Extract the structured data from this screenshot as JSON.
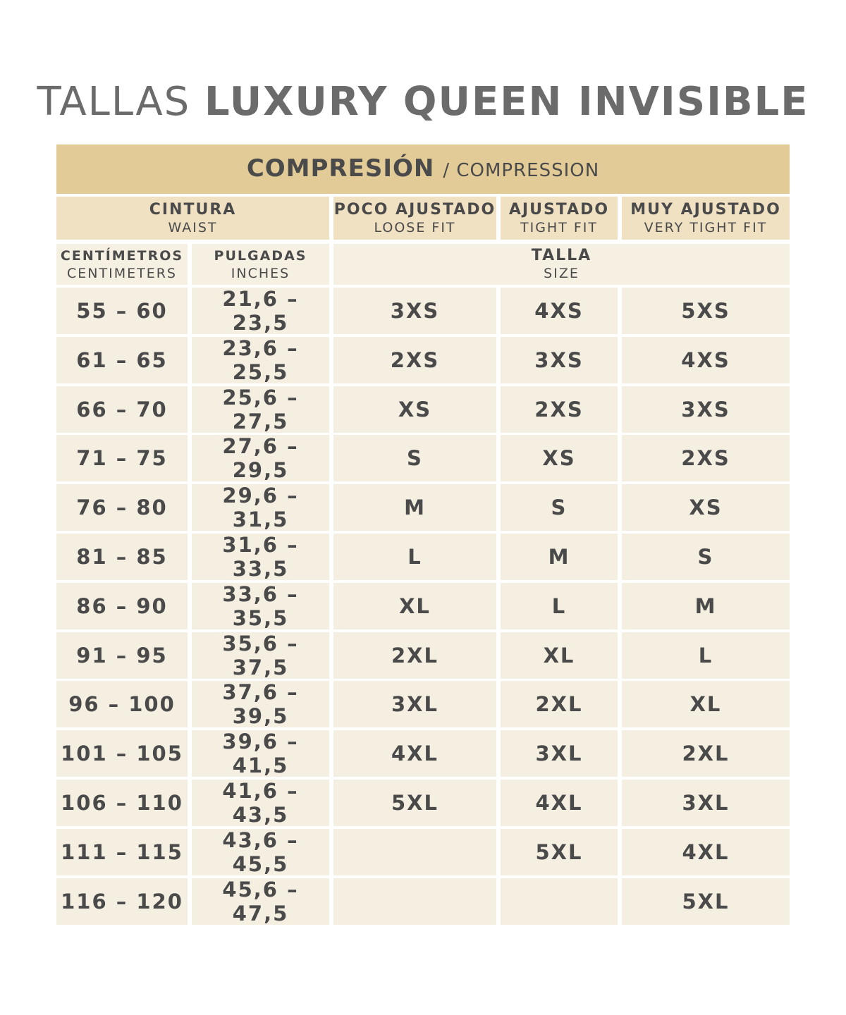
{
  "title": {
    "light": "TALLAS",
    "bold": "LUXURY QUEEN INVISIBLE"
  },
  "band": {
    "main": "COMPRESIÓN",
    "sub": "/ COMPRESSION"
  },
  "headers": {
    "waist": {
      "es": "CINTURA",
      "en": "WAIST"
    },
    "loose": {
      "es": "POCO AJUSTADO",
      "en": "LOOSE FIT"
    },
    "tight": {
      "es": "AJUSTADO",
      "en": "TIGHT FIT"
    },
    "very_tight": {
      "es": "MUY AJUSTADO",
      "en": "VERY TIGHT FIT"
    }
  },
  "subheaders": {
    "cm": {
      "es": "CENTÍMETROS",
      "en": "CENTIMETERS"
    },
    "in": {
      "es": "PULGADAS",
      "en": "INCHES"
    },
    "size": {
      "es": "TALLA",
      "en": "SIZE"
    }
  },
  "rows": [
    {
      "cm": "55 – 60",
      "in": "21,6 – 23,5",
      "loose": "3XS",
      "tight": "4XS",
      "very_tight": "5XS"
    },
    {
      "cm": "61 – 65",
      "in": "23,6 – 25,5",
      "loose": "2XS",
      "tight": "3XS",
      "very_tight": "4XS"
    },
    {
      "cm": "66 – 70",
      "in": "25,6 – 27,5",
      "loose": "XS",
      "tight": "2XS",
      "very_tight": "3XS"
    },
    {
      "cm": "71 – 75",
      "in": "27,6 – 29,5",
      "loose": "S",
      "tight": "XS",
      "very_tight": "2XS"
    },
    {
      "cm": "76 – 80",
      "in": "29,6 – 31,5",
      "loose": "M",
      "tight": "S",
      "very_tight": "XS"
    },
    {
      "cm": "81 – 85",
      "in": "31,6 – 33,5",
      "loose": "L",
      "tight": "M",
      "very_tight": "S"
    },
    {
      "cm": "86 – 90",
      "in": "33,6 – 35,5",
      "loose": "XL",
      "tight": "L",
      "very_tight": "M"
    },
    {
      "cm": "91 – 95",
      "in": "35,6 – 37,5",
      "loose": "2XL",
      "tight": "XL",
      "very_tight": "L"
    },
    {
      "cm": "96 – 100",
      "in": "37,6 – 39,5",
      "loose": "3XL",
      "tight": "2XL",
      "very_tight": "XL"
    },
    {
      "cm": "101 – 105",
      "in": "39,6 – 41,5",
      "loose": "4XL",
      "tight": "3XL",
      "very_tight": "2XL"
    },
    {
      "cm": "106 – 110",
      "in": "41,6 – 43,5",
      "loose": "5XL",
      "tight": "4XL",
      "very_tight": "3XL"
    },
    {
      "cm": "111 – 115",
      "in": "43,6 – 45,5",
      "loose": "",
      "tight": "5XL",
      "very_tight": "4XL"
    },
    {
      "cm": "116 – 120",
      "in": "45,6 – 47,5",
      "loose": "",
      "tight": "",
      "very_tight": "5XL"
    }
  ],
  "colors": {
    "band": "#e3cb98",
    "header": "#f0e1c3",
    "cell": "#f5efe1",
    "text": "#4a4a4a",
    "title": "#6b6b6b"
  }
}
